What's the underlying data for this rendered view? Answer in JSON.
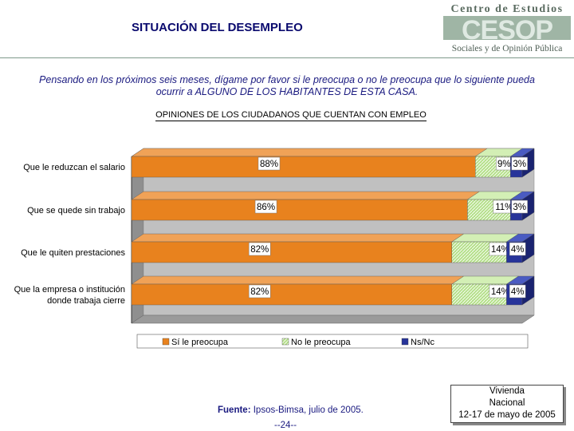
{
  "header": {
    "title": "SITUACIÓN DEL DESEMPLEO",
    "logo_line1": "Centro de Estudios",
    "logo_mark": "CESOP",
    "logo_line2": "Sociales y de Opinión Pública"
  },
  "question": "Pensando en los próximos seis meses, dígame por favor si le preocupa o no le preocupa que lo siguiente pueda ocurrir a ALGUNO DE LOS HABITANTES DE ESTA CASA.",
  "subtitle": "OPINIONES DE LOS CIUDADANOS QUE CUENTAN CON EMPLEO",
  "colors": {
    "si": "#e8821e",
    "no": "#b5e08a",
    "ns": "#27349a",
    "wall": "#c0c0c0"
  },
  "chart_data": {
    "type": "bar",
    "orientation": "horizontal",
    "stacked": true,
    "percent_stacked": true,
    "categories": [
      "Que le reduzcan el salario",
      "Que se quede sin trabajo",
      "Que le quiten prestaciones",
      "Que la empresa o institución donde trabaja cierre"
    ],
    "category_lines": [
      [
        "Que le reduzcan el salario"
      ],
      [
        "Que se quede sin trabajo"
      ],
      [
        "Que le quiten prestaciones"
      ],
      [
        "Que la empresa o institución",
        "donde trabaja cierre"
      ]
    ],
    "series": [
      {
        "name": "Sí le preocupa",
        "values": [
          88,
          86,
          82,
          82
        ],
        "labels": [
          "88%",
          "86%",
          "82%",
          "82%"
        ]
      },
      {
        "name": "No le preocupa",
        "values": [
          9,
          11,
          14,
          14
        ],
        "labels": [
          "9%",
          "11%",
          "14%",
          "14%"
        ]
      },
      {
        "name": "Ns/Nc",
        "values": [
          3,
          3,
          4,
          4
        ],
        "labels": [
          "3%",
          "3%",
          "4%",
          "4%"
        ]
      }
    ],
    "legend": [
      "Sí le preocupa",
      "No le preocupa",
      "Ns/Nc"
    ],
    "legend_position": "bottom",
    "title": "",
    "xlabel": "",
    "ylabel": ""
  },
  "footer": {
    "source_label": "Fuente:",
    "source_text": " Ipsos-Bimsa, julio de 2005.",
    "page": "--24--",
    "survey_line1": "Vivienda",
    "survey_line2": "Nacional",
    "survey_line3": "12-17 de mayo de 2005"
  }
}
